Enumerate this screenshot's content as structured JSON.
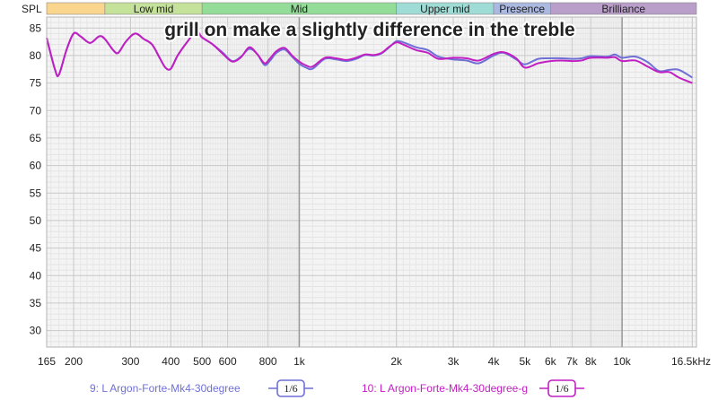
{
  "chart_data": {
    "type": "line",
    "title": "grill on make a slightly difference in the treble",
    "ylabel": "SPL",
    "xscale": "log",
    "xlim": [
      165,
      17000
    ],
    "ylim": [
      27,
      87
    ],
    "yticks": [
      30,
      35,
      40,
      45,
      50,
      55,
      60,
      65,
      70,
      75,
      80,
      85
    ],
    "xticks": [
      {
        "value": 165,
        "label": "165"
      },
      {
        "value": 200,
        "label": "200"
      },
      {
        "value": 300,
        "label": "300"
      },
      {
        "value": 400,
        "label": "400"
      },
      {
        "value": 500,
        "label": "500"
      },
      {
        "value": 600,
        "label": "600"
      },
      {
        "value": 800,
        "label": "800"
      },
      {
        "value": 1000,
        "label": "1k"
      },
      {
        "value": 2000,
        "label": "2k"
      },
      {
        "value": 3000,
        "label": "3k"
      },
      {
        "value": 4000,
        "label": "4k"
      },
      {
        "value": 5000,
        "label": "5k"
      },
      {
        "value": 6000,
        "label": "6k"
      },
      {
        "value": 7000,
        "label": "7k"
      },
      {
        "value": 8000,
        "label": "8k"
      },
      {
        "value": 10000,
        "label": "10k"
      },
      {
        "value": 16500,
        "label": "16.5kHz"
      }
    ],
    "bands": [
      {
        "label": "",
        "from": 165,
        "to": 250,
        "color": "#f9d58e"
      },
      {
        "label": "Low mid",
        "from": 250,
        "to": 500,
        "color": "#c4e29a"
      },
      {
        "label": "Mid",
        "from": 500,
        "to": 2000,
        "color": "#93dd99"
      },
      {
        "label": "Upper mid",
        "from": 2000,
        "to": 4000,
        "color": "#9fdcd6"
      },
      {
        "label": "Presence",
        "from": 4000,
        "to": 6000,
        "color": "#abb8df"
      },
      {
        "label": "Brilliance",
        "from": 6000,
        "to": 17000,
        "color": "#b99ec9"
      }
    ],
    "series": [
      {
        "name": "9: L Argon-Forte-Mk4-30degree",
        "color": "#6f6fd6",
        "smoothing": "1/6",
        "points": [
          [
            165,
            83.2
          ],
          [
            175,
            77.5
          ],
          [
            180,
            76.5
          ],
          [
            190,
            81
          ],
          [
            200,
            84
          ],
          [
            210,
            83.5
          ],
          [
            225,
            82.3
          ],
          [
            240,
            83.5
          ],
          [
            250,
            83
          ],
          [
            265,
            81
          ],
          [
            275,
            80.5
          ],
          [
            290,
            82.5
          ],
          [
            310,
            84
          ],
          [
            330,
            83
          ],
          [
            350,
            82
          ],
          [
            370,
            79.5
          ],
          [
            385,
            77.8
          ],
          [
            400,
            77.6
          ],
          [
            420,
            80
          ],
          [
            450,
            82.5
          ],
          [
            480,
            84.4
          ],
          [
            500,
            83.3
          ],
          [
            540,
            82
          ],
          [
            580,
            80.5
          ],
          [
            620,
            79
          ],
          [
            660,
            79.8
          ],
          [
            700,
            81.2
          ],
          [
            740,
            80.3
          ],
          [
            780,
            78.3
          ],
          [
            810,
            79
          ],
          [
            850,
            80.5
          ],
          [
            900,
            81.1
          ],
          [
            950,
            79.8
          ],
          [
            1000,
            78.5
          ],
          [
            1050,
            77.8
          ],
          [
            1100,
            77.6
          ],
          [
            1200,
            79.4
          ],
          [
            1300,
            79.3
          ],
          [
            1400,
            79
          ],
          [
            1500,
            79.4
          ],
          [
            1600,
            80.1
          ],
          [
            1700,
            80
          ],
          [
            1800,
            80.4
          ],
          [
            1900,
            81.5
          ],
          [
            2000,
            82.6
          ],
          [
            2100,
            82.4
          ],
          [
            2300,
            81.5
          ],
          [
            2500,
            81
          ],
          [
            2700,
            79.8
          ],
          [
            3000,
            79.3
          ],
          [
            3300,
            79.1
          ],
          [
            3600,
            78.6
          ],
          [
            4000,
            80
          ],
          [
            4300,
            80.5
          ],
          [
            4700,
            79.3
          ],
          [
            5000,
            78.4
          ],
          [
            5500,
            79.4
          ],
          [
            6000,
            79.5
          ],
          [
            6500,
            79.5
          ],
          [
            7000,
            79.4
          ],
          [
            7500,
            79.5
          ],
          [
            8000,
            79.9
          ],
          [
            9000,
            79.8
          ],
          [
            9500,
            80.2
          ],
          [
            10000,
            79.6
          ],
          [
            11000,
            79.8
          ],
          [
            12000,
            78.8
          ],
          [
            13000,
            77.2
          ],
          [
            14000,
            77.4
          ],
          [
            15000,
            77.4
          ],
          [
            16500,
            76
          ]
        ]
      },
      {
        "name": "10: L Argon-Forte-Mk4-30degree-g",
        "color": "#c21fc2",
        "smoothing": "1/6",
        "points": [
          [
            165,
            83.2
          ],
          [
            175,
            77.5
          ],
          [
            180,
            76.5
          ],
          [
            190,
            81
          ],
          [
            200,
            84
          ],
          [
            210,
            83.5
          ],
          [
            225,
            82.3
          ],
          [
            240,
            83.5
          ],
          [
            250,
            83
          ],
          [
            265,
            81
          ],
          [
            275,
            80.5
          ],
          [
            290,
            82.5
          ],
          [
            310,
            84
          ],
          [
            330,
            83
          ],
          [
            350,
            82
          ],
          [
            370,
            79.5
          ],
          [
            385,
            77.8
          ],
          [
            400,
            77.6
          ],
          [
            420,
            80
          ],
          [
            450,
            82.5
          ],
          [
            480,
            84.4
          ],
          [
            500,
            83.3
          ],
          [
            540,
            82
          ],
          [
            580,
            80.3
          ],
          [
            620,
            78.9
          ],
          [
            660,
            79.7
          ],
          [
            700,
            81.5
          ],
          [
            740,
            80.3
          ],
          [
            780,
            78.6
          ],
          [
            810,
            79.4
          ],
          [
            850,
            80.8
          ],
          [
            900,
            81.4
          ],
          [
            950,
            80
          ],
          [
            1000,
            78.9
          ],
          [
            1050,
            78.2
          ],
          [
            1100,
            78
          ],
          [
            1200,
            79.6
          ],
          [
            1300,
            79.5
          ],
          [
            1400,
            79.2
          ],
          [
            1500,
            79.6
          ],
          [
            1600,
            80.2
          ],
          [
            1700,
            80.1
          ],
          [
            1800,
            80.5
          ],
          [
            1900,
            81.6
          ],
          [
            2000,
            82.4
          ],
          [
            2100,
            82
          ],
          [
            2300,
            81
          ],
          [
            2500,
            80.5
          ],
          [
            2700,
            79.4
          ],
          [
            3000,
            79.6
          ],
          [
            3300,
            79.5
          ],
          [
            3600,
            79.1
          ],
          [
            4000,
            80.3
          ],
          [
            4300,
            80.6
          ],
          [
            4700,
            79.5
          ],
          [
            5000,
            77.8
          ],
          [
            5500,
            78.6
          ],
          [
            6000,
            79
          ],
          [
            6500,
            79.1
          ],
          [
            7000,
            79
          ],
          [
            7500,
            79.1
          ],
          [
            8000,
            79.6
          ],
          [
            9000,
            79.6
          ],
          [
            9500,
            79.7
          ],
          [
            10000,
            79
          ],
          [
            11000,
            79.1
          ],
          [
            12000,
            78
          ],
          [
            13000,
            77
          ],
          [
            14000,
            77
          ],
          [
            15000,
            76
          ],
          [
            16500,
            75
          ]
        ]
      }
    ]
  }
}
